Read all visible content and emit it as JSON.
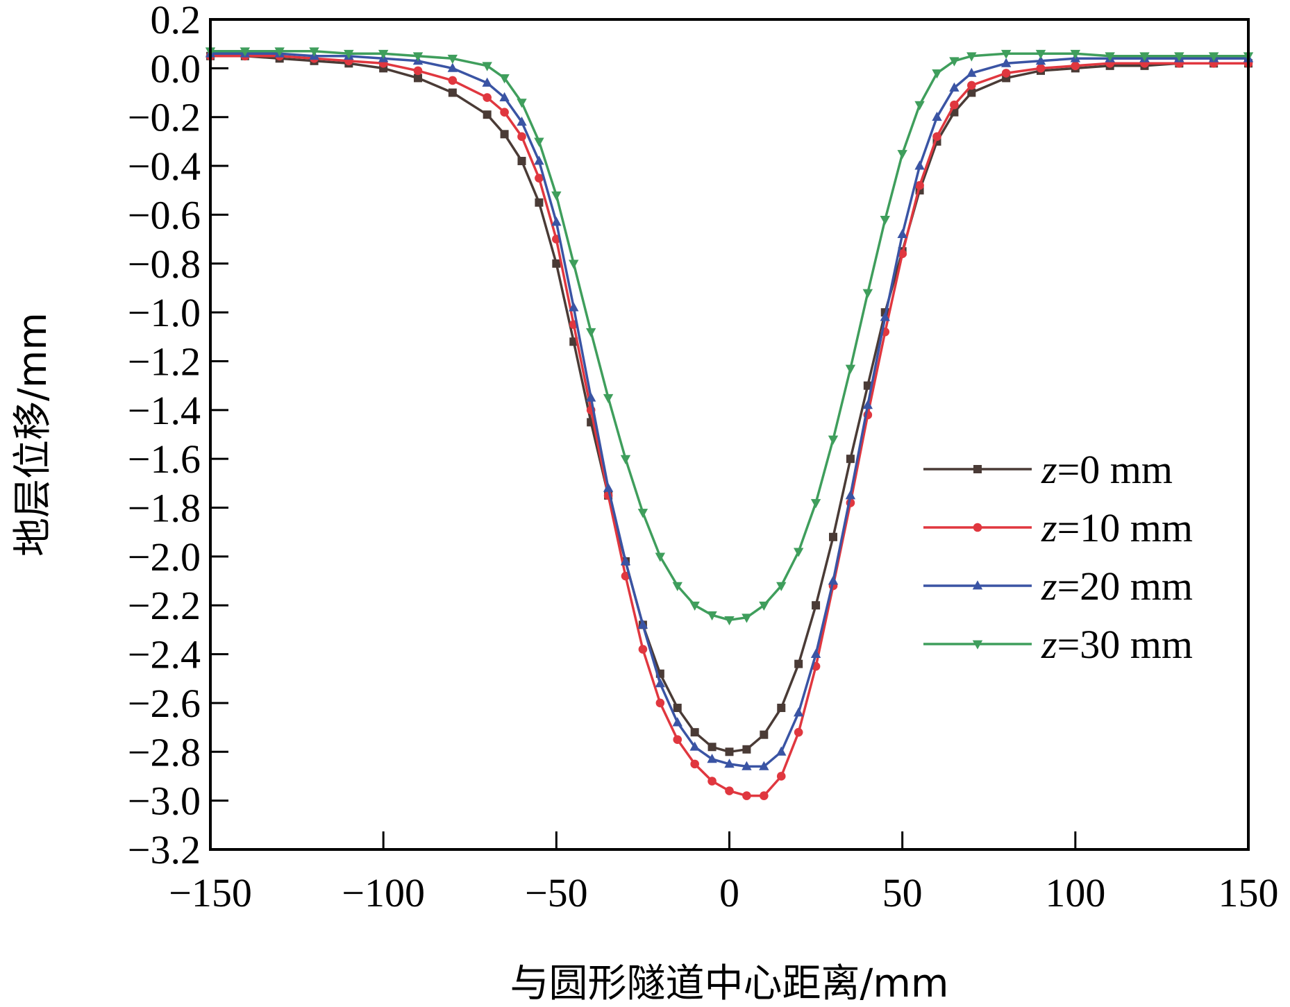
{
  "chart_data": {
    "type": "line",
    "title": "",
    "xlabel": "与圆形隧道中心距离/mm",
    "ylabel": "地层位移/mm",
    "xlim": [
      -150,
      150
    ],
    "ylim": [
      -3.2,
      0.2
    ],
    "xticks": [
      -150,
      -100,
      -50,
      0,
      50,
      100,
      150
    ],
    "xtick_labels": [
      "−150",
      "−100",
      "−50",
      "0",
      "50",
      "100",
      "150"
    ],
    "yticks": [
      0.2,
      0.0,
      -0.2,
      -0.4,
      -0.6,
      -0.8,
      -1.0,
      -1.2,
      -1.4,
      -1.6,
      -1.8,
      -2.0,
      -2.2,
      -2.4,
      -2.6,
      -2.8,
      -3.0,
      -3.2
    ],
    "ytick_labels": [
      "0.2",
      "0.0",
      "−0.2",
      "−0.4",
      "−0.6",
      "−0.8",
      "−1.0",
      "−1.2",
      "−1.4",
      "−1.6",
      "−1.8",
      "−2.0",
      "−2.2",
      "−2.4",
      "−2.6",
      "−2.8",
      "−3.0",
      "−3.2"
    ],
    "grid": false,
    "legend_position": "right-middle",
    "series": [
      {
        "name": "z=0 mm",
        "legend_var": "z",
        "legend_rest": "=0 mm",
        "color": "#4a3b36",
        "marker": "square",
        "x": [
          -150,
          -140,
          -130,
          -120,
          -110,
          -100,
          -90,
          -80,
          -70,
          -65,
          -60,
          -55,
          -50,
          -45,
          -40,
          -35,
          -30,
          -25,
          -20,
          -15,
          -10,
          -5,
          0,
          5,
          10,
          15,
          20,
          25,
          30,
          35,
          40,
          45,
          50,
          55,
          60,
          65,
          70,
          80,
          90,
          100,
          110,
          120,
          130,
          140,
          150
        ],
        "y": [
          0.05,
          0.05,
          0.04,
          0.03,
          0.02,
          0.0,
          -0.04,
          -0.1,
          -0.19,
          -0.27,
          -0.38,
          -0.55,
          -0.8,
          -1.12,
          -1.45,
          -1.75,
          -2.02,
          -2.28,
          -2.48,
          -2.62,
          -2.72,
          -2.78,
          -2.8,
          -2.79,
          -2.73,
          -2.62,
          -2.44,
          -2.2,
          -1.92,
          -1.6,
          -1.3,
          -1.0,
          -0.75,
          -0.5,
          -0.3,
          -0.18,
          -0.1,
          -0.04,
          -0.01,
          0.0,
          0.01,
          0.01,
          0.02,
          0.02,
          0.02
        ]
      },
      {
        "name": "z=10 mm",
        "legend_var": "z",
        "legend_rest": "=10 mm",
        "color": "#e0373f",
        "marker": "circle",
        "x": [
          -150,
          -140,
          -130,
          -120,
          -110,
          -100,
          -90,
          -80,
          -70,
          -65,
          -60,
          -55,
          -50,
          -45,
          -40,
          -35,
          -30,
          -25,
          -20,
          -15,
          -10,
          -5,
          0,
          5,
          10,
          15,
          20,
          25,
          30,
          35,
          40,
          45,
          50,
          55,
          60,
          65,
          70,
          80,
          90,
          100,
          110,
          120,
          130,
          140,
          150
        ],
        "y": [
          0.05,
          0.05,
          0.05,
          0.04,
          0.03,
          0.02,
          -0.01,
          -0.05,
          -0.12,
          -0.18,
          -0.28,
          -0.45,
          -0.7,
          -1.05,
          -1.4,
          -1.75,
          -2.08,
          -2.38,
          -2.6,
          -2.75,
          -2.85,
          -2.92,
          -2.96,
          -2.98,
          -2.98,
          -2.9,
          -2.72,
          -2.45,
          -2.12,
          -1.78,
          -1.42,
          -1.08,
          -0.76,
          -0.48,
          -0.28,
          -0.15,
          -0.07,
          -0.02,
          0.0,
          0.01,
          0.02,
          0.02,
          0.02,
          0.02,
          0.02
        ]
      },
      {
        "name": "z=20 mm",
        "legend_var": "z",
        "legend_rest": "=20 mm",
        "color": "#3a54a4",
        "marker": "triangle-up",
        "x": [
          -150,
          -140,
          -130,
          -120,
          -110,
          -100,
          -90,
          -80,
          -70,
          -65,
          -60,
          -55,
          -50,
          -45,
          -40,
          -35,
          -30,
          -25,
          -20,
          -15,
          -10,
          -5,
          0,
          5,
          10,
          15,
          20,
          25,
          30,
          35,
          40,
          45,
          50,
          55,
          60,
          65,
          70,
          80,
          90,
          100,
          110,
          120,
          130,
          140,
          150
        ],
        "y": [
          0.06,
          0.06,
          0.06,
          0.05,
          0.05,
          0.04,
          0.03,
          0.0,
          -0.06,
          -0.12,
          -0.22,
          -0.38,
          -0.63,
          -0.98,
          -1.35,
          -1.72,
          -2.02,
          -2.28,
          -2.52,
          -2.68,
          -2.78,
          -2.83,
          -2.85,
          -2.86,
          -2.86,
          -2.8,
          -2.64,
          -2.4,
          -2.1,
          -1.75,
          -1.38,
          -1.02,
          -0.68,
          -0.4,
          -0.2,
          -0.08,
          -0.02,
          0.02,
          0.03,
          0.04,
          0.04,
          0.04,
          0.04,
          0.04,
          0.04
        ]
      },
      {
        "name": "z=30 mm",
        "legend_var": "z",
        "legend_rest": "=30 mm",
        "color": "#3f9e5c",
        "marker": "triangle-down",
        "x": [
          -150,
          -140,
          -130,
          -120,
          -110,
          -100,
          -90,
          -80,
          -70,
          -65,
          -60,
          -55,
          -50,
          -45,
          -40,
          -35,
          -30,
          -25,
          -20,
          -15,
          -10,
          -5,
          0,
          5,
          10,
          15,
          20,
          25,
          30,
          35,
          40,
          45,
          50,
          55,
          60,
          65,
          70,
          80,
          90,
          100,
          110,
          120,
          130,
          140,
          150
        ],
        "y": [
          0.07,
          0.07,
          0.07,
          0.07,
          0.06,
          0.06,
          0.05,
          0.04,
          0.01,
          -0.04,
          -0.14,
          -0.3,
          -0.52,
          -0.8,
          -1.08,
          -1.35,
          -1.6,
          -1.82,
          -2.0,
          -2.12,
          -2.2,
          -2.24,
          -2.26,
          -2.25,
          -2.2,
          -2.12,
          -1.98,
          -1.78,
          -1.52,
          -1.23,
          -0.92,
          -0.62,
          -0.35,
          -0.15,
          -0.02,
          0.03,
          0.05,
          0.06,
          0.06,
          0.06,
          0.05,
          0.05,
          0.05,
          0.05,
          0.05
        ]
      }
    ]
  }
}
